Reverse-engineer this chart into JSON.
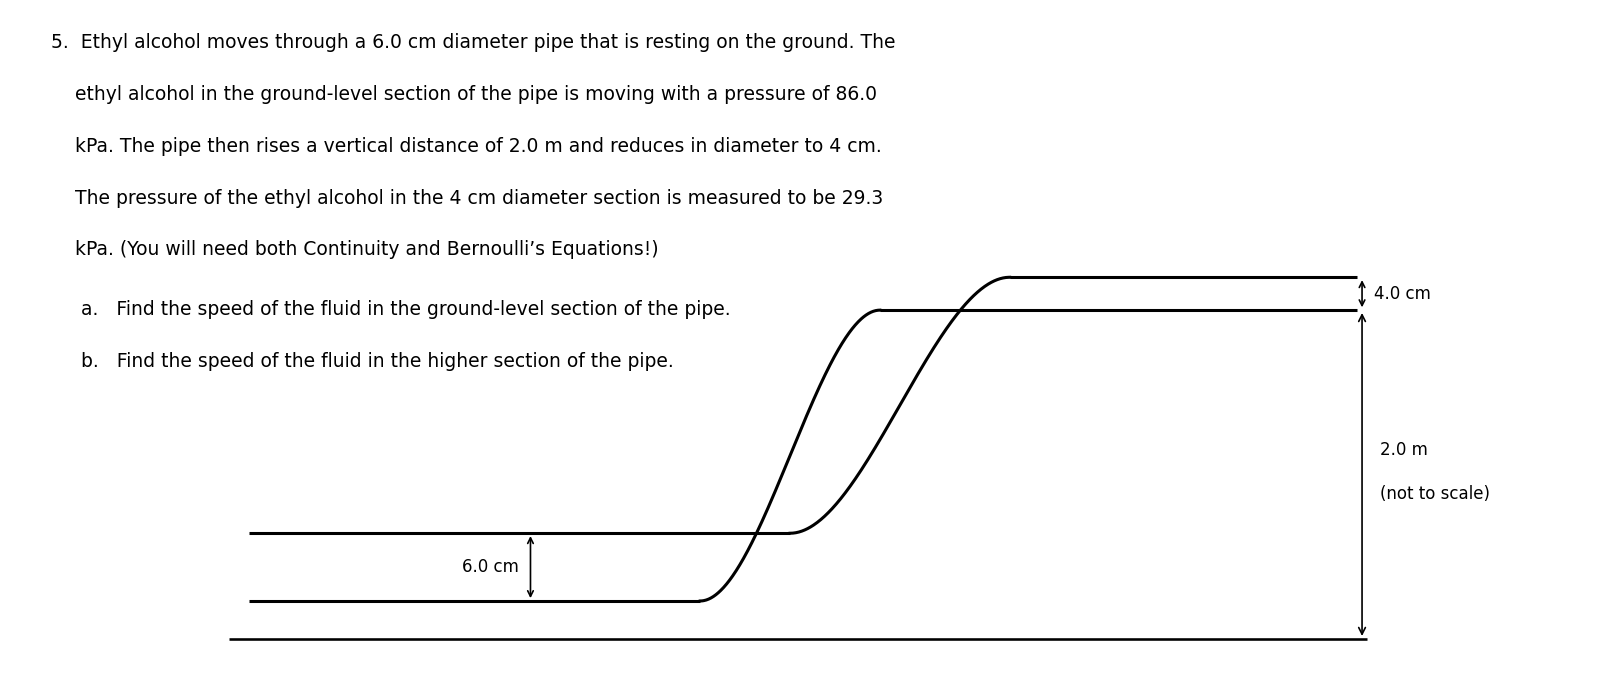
{
  "background_color": "#ffffff",
  "text_color": "#000000",
  "pipe_color": "#000000",
  "pipe_linewidth": 2.2,
  "problem_text_lines": [
    "5.  Ethyl alcohol moves through a 6.0 cm diameter pipe that is resting on the ground. The",
    "    ethyl alcohol in the ground-level section of the pipe is moving with a pressure of 86.0",
    "    kPa. The pipe then rises a vertical distance of 2.0 m and reduces in diameter to 4 cm.",
    "    The pressure of the ethyl alcohol in the 4 cm diameter section is measured to be 29.3",
    "    kPa. (You will need both Continuity and Bernoulli’s Equations!)"
  ],
  "sub_a": "a.   Find the speed of the fluid in the ground-level section of the pipe.",
  "sub_b": "b.   Find the speed of the fluid in the higher section of the pipe.",
  "label_60cm": "6.0 cm",
  "label_40cm": "4.0 cm",
  "label_height": "2.0 m",
  "label_scale": "(not to scale)"
}
